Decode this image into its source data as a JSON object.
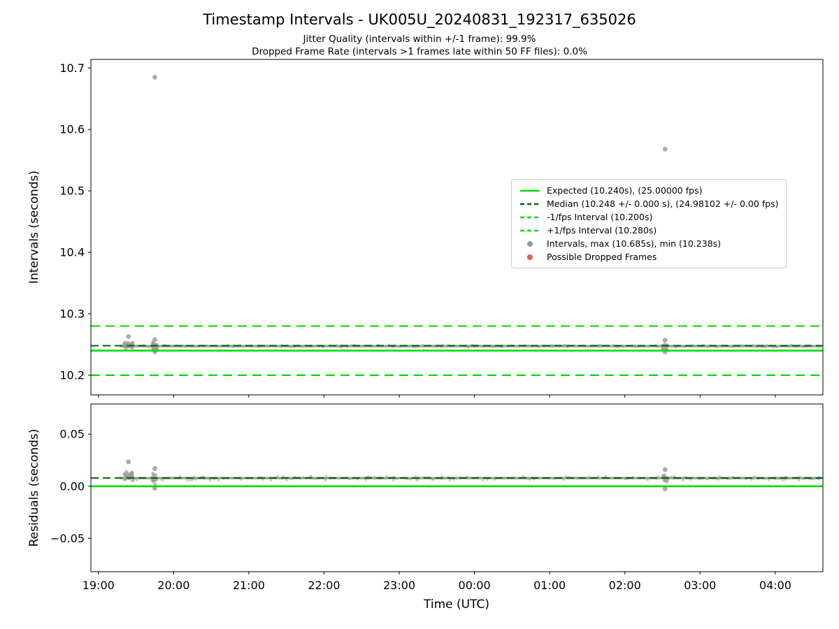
{
  "figure": {
    "title": "Timestamp Intervals - UK005U_20240831_192317_635026",
    "subtitle1": "Jitter Quality (intervals within +/-1 frame): 99.9%",
    "subtitle2": "Dropped Frame Rate (intervals >1 frames late within 50 FF files): 0.0%"
  },
  "x_axis": {
    "label": "Time (UTC)",
    "xlim": [
      -6,
      578
    ],
    "ticks_min": [
      0,
      60,
      120,
      180,
      240,
      300,
      360,
      420,
      480,
      540
    ],
    "tick_labels": [
      "19:00",
      "20:00",
      "21:00",
      "22:00",
      "23:00",
      "00:00",
      "01:00",
      "02:00",
      "03:00",
      "04:00"
    ]
  },
  "chart_data": [
    {
      "id": "intervals",
      "type": "scatter",
      "ylabel": "Intervals (seconds)",
      "ylim": [
        10.168,
        10.714
      ],
      "yticks": [
        10.2,
        10.3,
        10.4,
        10.5,
        10.6,
        10.7
      ],
      "ytick_labels": [
        "10.2",
        "10.3",
        "10.4",
        "10.5",
        "10.6",
        "10.7"
      ],
      "grid": false,
      "ref_lines": [
        {
          "name": "expected",
          "y": 10.24,
          "color": "#00dd00",
          "width": 2.6,
          "dash": null,
          "label": "Expected (10.240s), (25.00000 fps)"
        },
        {
          "name": "minus-1fps",
          "y": 10.2,
          "color": "#00dd00",
          "width": 2.2,
          "dash": "13 8",
          "label": "-1/fps Interval (10.200s)"
        },
        {
          "name": "plus-1fps",
          "y": 10.28,
          "color": "#00dd00",
          "width": 2.2,
          "dash": "13 8",
          "label": "+1/fps Interval (10.280s)"
        },
        {
          "name": "median",
          "y": 10.248,
          "color": "#006400",
          "width": 2.0,
          "dash": "11 6",
          "label": "Median (10.248 +/- 0.000 s), (24.98102 +/- 0.00 fps)"
        }
      ],
      "band": {
        "x_start": 17,
        "x_end": 577,
        "y": 10.2473,
        "half_width": 0.0022
      },
      "clusters": [
        {
          "x": 24,
          "x_spread": 7,
          "n": 28,
          "y_min": 10.241,
          "y_max": 10.257
        },
        {
          "x": 45,
          "x_spread": 4,
          "n": 20,
          "y_min": 10.24,
          "y_max": 10.256
        },
        {
          "x": 452,
          "x_spread": 4,
          "n": 14,
          "y_min": 10.24,
          "y_max": 10.255
        }
      ],
      "points": [
        {
          "x": 24,
          "y": 10.263
        },
        {
          "x": 45,
          "y": 10.685
        },
        {
          "x": 45,
          "y": 10.258
        },
        {
          "x": 45,
          "y": 10.238
        },
        {
          "x": 452,
          "y": 10.568
        },
        {
          "x": 452,
          "y": 10.257
        },
        {
          "x": 452,
          "y": 10.238
        }
      ],
      "stats": {
        "max": 10.685,
        "min": 10.238,
        "median": 10.248,
        "expected": 10.24
      }
    },
    {
      "id": "residuals",
      "type": "scatter",
      "ylabel": "Residuals (seconds)",
      "ylim": [
        -0.082,
        0.079
      ],
      "yticks": [
        -0.05,
        0.0,
        0.05
      ],
      "ytick_labels": [
        "−0.05",
        "0.00",
        "0.05"
      ],
      "grid": false,
      "ref_lines": [
        {
          "name": "zero",
          "y": 0.0,
          "color": "#00dd00",
          "width": 2.6,
          "dash": null
        },
        {
          "name": "median-residual",
          "y": 0.008,
          "color": "#006400",
          "width": 2.0,
          "dash": "11 6"
        }
      ],
      "band": {
        "x_start": 17,
        "x_end": 577,
        "y": 0.0078,
        "half_width": 0.0022
      },
      "clusters": [
        {
          "x": 24,
          "x_spread": 7,
          "n": 24,
          "y_min": 0.004,
          "y_max": 0.015
        },
        {
          "x": 45,
          "x_spread": 4,
          "n": 18,
          "y_min": 0.0,
          "y_max": 0.013
        },
        {
          "x": 452,
          "x_spread": 4,
          "n": 12,
          "y_min": 0.0,
          "y_max": 0.014
        }
      ],
      "points": [
        {
          "x": 24,
          "y": 0.0235
        },
        {
          "x": 45,
          "y": 0.017
        },
        {
          "x": 45,
          "y": -0.002
        },
        {
          "x": 452,
          "y": 0.016
        },
        {
          "x": 452,
          "y": -0.0025
        }
      ]
    }
  ],
  "legend": {
    "position": "center-right-inside",
    "entries": [
      {
        "marker": "line",
        "dash": false,
        "color": "#00dd00",
        "label": "Expected (10.240s), (25.00000 fps)"
      },
      {
        "marker": "line",
        "dash": true,
        "color": "#006400",
        "label": "Median (10.248 +/- 0.000 s), (24.98102 +/- 0.00 fps)"
      },
      {
        "marker": "line",
        "dash": true,
        "color": "#00dd00",
        "label": "-1/fps Interval (10.200s)"
      },
      {
        "marker": "line",
        "dash": true,
        "color": "#00dd00",
        "label": "+1/fps Interval (10.280s)"
      },
      {
        "marker": "dot",
        "dash": false,
        "color": "#9a9a9a",
        "label": "Intervals, max (10.685s), min (10.238s)"
      },
      {
        "marker": "dot",
        "dash": false,
        "color": "#e05c5c",
        "label": "Possible Dropped Frames"
      }
    ]
  }
}
